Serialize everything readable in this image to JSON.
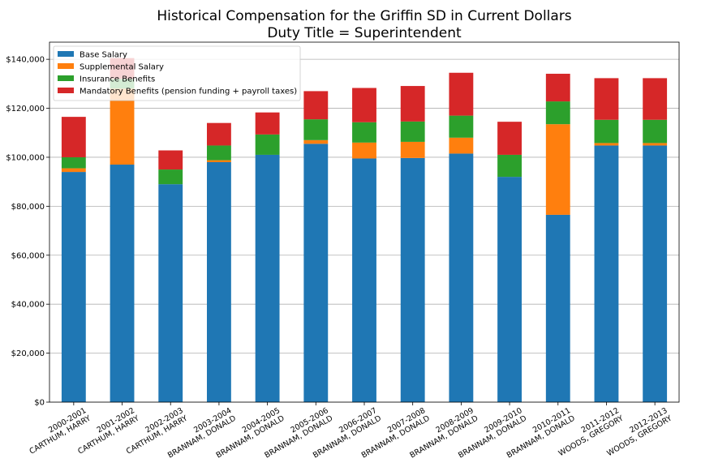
{
  "chart_data": {
    "type": "bar",
    "stacked": true,
    "title": "Historical Compensation for the Griffin SD in Current Dollars",
    "subtitle": "Duty Title = Superintendent",
    "xlabel": "",
    "ylabel": "",
    "ylim": [
      0,
      147000
    ],
    "yticks": [
      "$0",
      "$20,000",
      "$40,000",
      "$60,000",
      "$80,000",
      "$100,000",
      "$120,000",
      "$140,000"
    ],
    "ytick_values": [
      0,
      20000,
      40000,
      60000,
      80000,
      100000,
      120000,
      140000
    ],
    "grid": "horizontal",
    "legend_position": "top-left",
    "categories": [
      {
        "year": "2000-2001",
        "name": "CARTHUM, HARRY"
      },
      {
        "year": "2001-2002",
        "name": "CARTHUM, HARRY"
      },
      {
        "year": "2002-2003",
        "name": "CARTHUM, HARRY"
      },
      {
        "year": "2003-2004",
        "name": "BRANNAM, DONALD"
      },
      {
        "year": "2004-2005",
        "name": "BRANNAM, DONALD"
      },
      {
        "year": "2005-2006",
        "name": "BRANNAM, DONALD"
      },
      {
        "year": "2006-2007",
        "name": "BRANNAM, DONALD"
      },
      {
        "year": "2007-2008",
        "name": "BRANNAM, DONALD"
      },
      {
        "year": "2008-2009",
        "name": "BRANNAM, DONALD"
      },
      {
        "year": "2009-2010",
        "name": "BRANNAM, DONALD"
      },
      {
        "year": "2010-2011",
        "name": "BRANNAM, DONALD"
      },
      {
        "year": "2011-2012",
        "name": "WOODS, GREGORY"
      },
      {
        "year": "2012-2013",
        "name": "WOODS, GREGORY"
      }
    ],
    "series": [
      {
        "name": "Base Salary",
        "color": "#1f77b4",
        "values": [
          94000,
          97000,
          89000,
          98000,
          101000,
          105500,
          99500,
          99700,
          101500,
          92000,
          76500,
          104800,
          104800
        ]
      },
      {
        "name": "Supplemental Salary",
        "color": "#ff7f0e",
        "values": [
          1500,
          31000,
          0,
          800,
          0,
          1500,
          6500,
          6600,
          6500,
          0,
          37000,
          1000,
          1000
        ]
      },
      {
        "name": "Insurance Benefits",
        "color": "#2ca02c",
        "values": [
          4500,
          4000,
          6000,
          6000,
          8300,
          8500,
          8300,
          8300,
          9000,
          9000,
          9300,
          9500,
          9500
        ]
      },
      {
        "name": "Mandatory Benefits (pension funding + payroll taxes)",
        "color": "#d62728",
        "values": [
          16500,
          8500,
          7800,
          9200,
          9000,
          11500,
          14000,
          14500,
          17500,
          13500,
          11300,
          17000,
          17000
        ]
      }
    ]
  }
}
